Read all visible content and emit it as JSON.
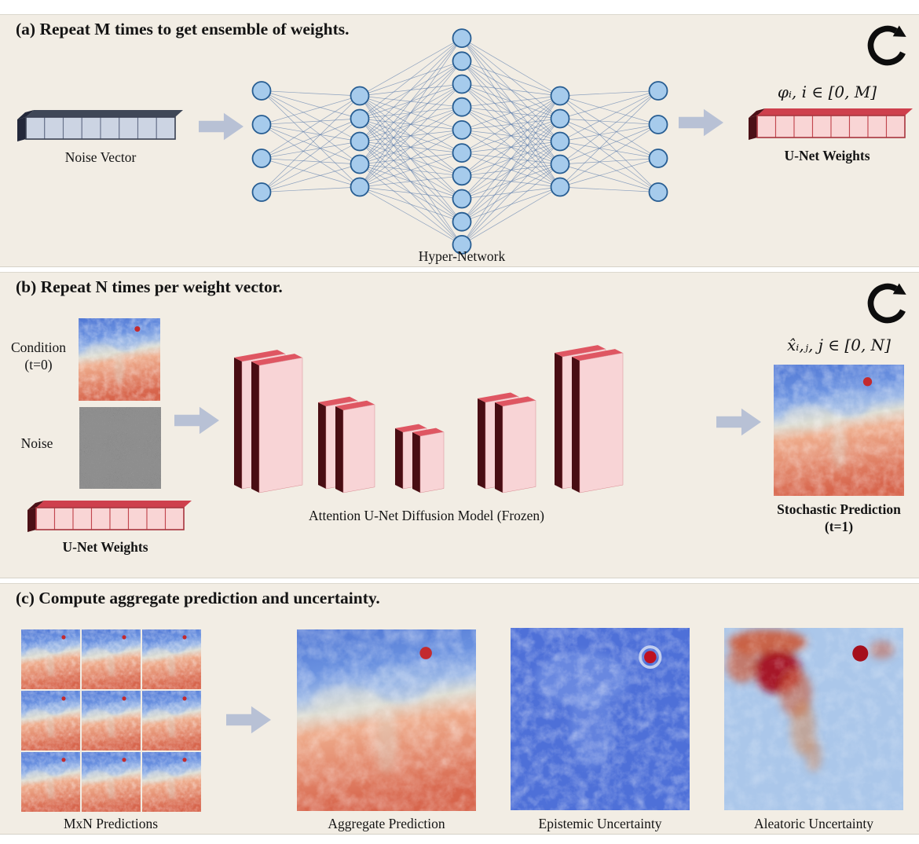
{
  "panel_a": {
    "title": "(a) Repeat M times to get ensemble of weights.",
    "noise_vector_label": "Noise Vector",
    "hypernetwork_label": "Hyper-Network",
    "weights_math_label": "φᵢ, i ∈ [0, M]",
    "weights_label": "U-Net Weights",
    "network": {
      "layers": [
        4,
        5,
        10,
        5,
        4
      ]
    },
    "vector_cells": 8
  },
  "panel_b": {
    "title": "(b) Repeat N times per weight vector.",
    "condition_label": "Condition",
    "condition_sublabel": "(t=0)",
    "noise_label": "Noise",
    "weights_label": "U-Net Weights",
    "unet_label": "Attention U-Net Diffusion Model (Frozen)",
    "prediction_math_label": "x̂ᵢ,ⱼ, j ∈ [0, N]",
    "prediction_label": "Stochastic Prediction",
    "prediction_sublabel": "(t=1)",
    "unet_block_pairs": 5,
    "vector_cells": 8
  },
  "panel_c": {
    "title": "(c) Compute aggregate prediction and uncertainty.",
    "grid_label": "MxN Predictions",
    "grid": {
      "rows": 3,
      "cols": 3
    },
    "aggregate_label": "Aggregate Prediction",
    "epistemic_label": "Epistemic Uncertainty",
    "aleatoric_label": "Aleatoric Uncertainty"
  },
  "icons": {
    "repeat": "circular-arrow-clockwise",
    "arrow": "thick-right-arrow"
  },
  "colors": {
    "panel_background": "#f2ede4",
    "page_background": "#ffffff",
    "arrow": "#b8c1d5",
    "icon": "#0d0d0d",
    "node_fill": "#a6cbec",
    "node_stroke": "#275d92",
    "edge_line": "#4a6fa5",
    "noise_bar": {
      "cell": "#ccd4e3",
      "grid": "#67718a",
      "edge": "#3a4152",
      "top": "#3f4757",
      "cap": "#23283a"
    },
    "weight_bar": {
      "cell": "#f9d5d5",
      "grid": "#c2454e",
      "edge": "#a83840",
      "top": "#ce404d",
      "cap": "#4b1016"
    },
    "slab": {
      "front": "#f8d4d6",
      "side": "#490d13",
      "top": "#df5662",
      "edge": "#d98b92"
    }
  },
  "map_palettes": {
    "prediction": {
      "top": "#4f76d4",
      "upper": "#6b92e0",
      "mid": "#9db9e6",
      "band": "#ddddd3",
      "lower": "#eeab8b",
      "bottom": "#d7654c",
      "dot": "#c32a2e"
    },
    "epistemic": {
      "base": "#4e70d8",
      "cloud": "#8aa6ea",
      "dot": "#bf1120"
    },
    "aleatoric": {
      "base": "#abc7ea",
      "blob": "#a50f1c",
      "orange": "#cc5a36",
      "drip": "#d08a5c",
      "dot": "#b3101e"
    },
    "noise_image": {
      "base": "#8e8e8e"
    }
  }
}
